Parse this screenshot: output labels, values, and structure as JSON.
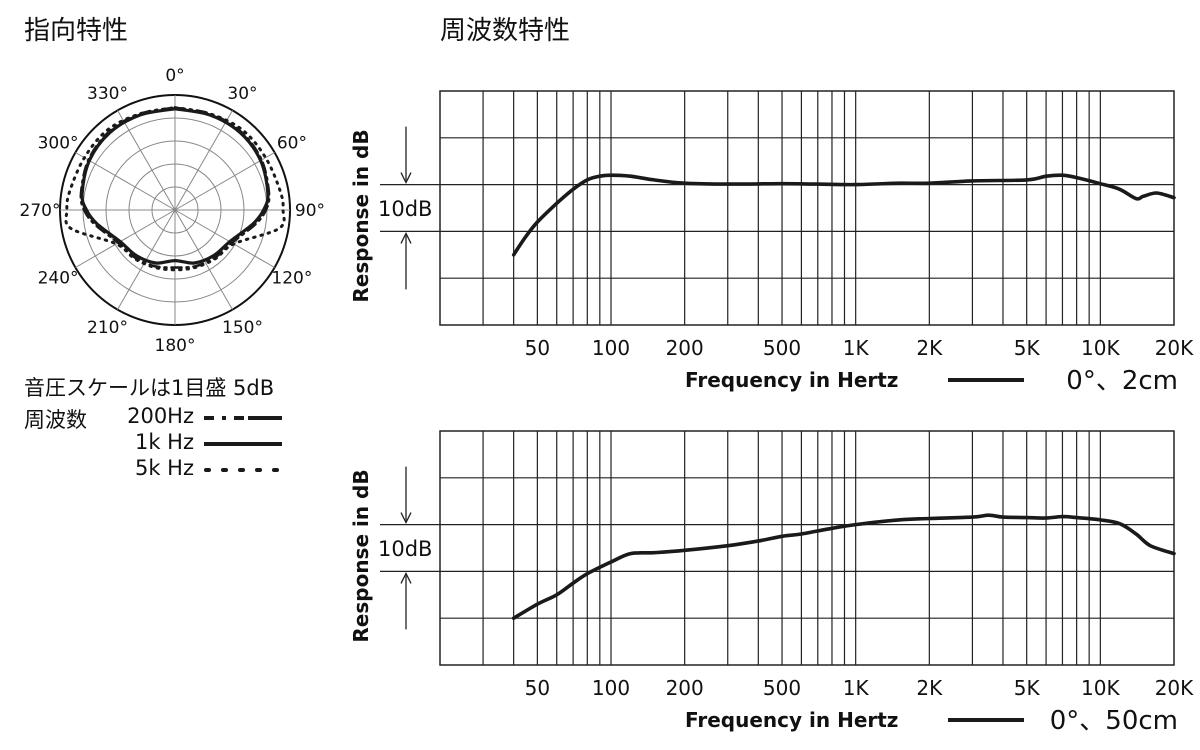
{
  "directivity": {
    "title": "指向特性",
    "scale_note": "音圧スケールは1目盛 5dB",
    "legend_heading": "周波数",
    "angle_labels": [
      "0°",
      "30°",
      "60°",
      "90°",
      "120°",
      "150°",
      "180°",
      "210°",
      "240°",
      "270°",
      "300°",
      "330°"
    ],
    "legend": [
      {
        "label": "200Hz",
        "style": "dash-dot"
      },
      {
        "label": "1k Hz",
        "style": "solid"
      },
      {
        "label": "5k Hz",
        "style": "dotted"
      }
    ]
  },
  "frequency_response": {
    "title": "周波数特性"
  },
  "colors": {
    "line": "#1a1a1a",
    "grid": "#222222",
    "background": "#ffffff"
  },
  "chart_data": [
    {
      "type": "line",
      "polar": true,
      "title": "指向特性",
      "scale_note": "音圧スケールは1目盛 5dB",
      "rings": 5,
      "angle_ticks_deg": [
        0,
        30,
        60,
        90,
        120,
        150,
        180,
        210,
        240,
        270,
        300,
        330
      ],
      "radius_unit": "normalized (1 = outer ring)",
      "series": [
        {
          "name": "200Hz",
          "style": "dash-dot",
          "angles": [
            0,
            20,
            40,
            60,
            80,
            90,
            100,
            120,
            140,
            160,
            180,
            200,
            220,
            240,
            260,
            270,
            280,
            300,
            320,
            340
          ],
          "r": [
            0.89,
            0.89,
            0.89,
            0.87,
            0.83,
            0.79,
            0.71,
            0.57,
            0.54,
            0.52,
            0.5,
            0.52,
            0.54,
            0.57,
            0.71,
            0.79,
            0.83,
            0.87,
            0.89,
            0.89
          ]
        },
        {
          "name": "1k Hz",
          "style": "solid",
          "angles": [
            0,
            20,
            40,
            60,
            80,
            90,
            100,
            120,
            140,
            160,
            180,
            200,
            220,
            240,
            260,
            270,
            280,
            300,
            320,
            340
          ],
          "r": [
            0.88,
            0.88,
            0.88,
            0.86,
            0.82,
            0.77,
            0.69,
            0.55,
            0.52,
            0.49,
            0.44,
            0.49,
            0.52,
            0.55,
            0.69,
            0.77,
            0.82,
            0.86,
            0.88,
            0.88
          ]
        },
        {
          "name": "5k Hz",
          "style": "dotted",
          "angles": [
            0,
            20,
            40,
            60,
            80,
            90,
            100,
            120,
            140,
            160,
            180,
            200,
            220,
            240,
            260,
            270,
            280,
            300,
            320,
            340
          ],
          "r": [
            0.89,
            0.89,
            0.91,
            0.91,
            0.93,
            0.94,
            0.92,
            0.59,
            0.55,
            0.53,
            0.52,
            0.53,
            0.55,
            0.59,
            0.92,
            0.94,
            0.93,
            0.91,
            0.91,
            0.89
          ]
        }
      ]
    },
    {
      "type": "line",
      "xscale": "log",
      "xlabel": "Frequency in Hertz",
      "ylabel": "Response in dB",
      "scale_label": "10dB",
      "xlim": [
        20,
        20000
      ],
      "ylim": [
        -30,
        20
      ],
      "xticks": [
        50,
        100,
        200,
        500,
        1000,
        2000,
        5000,
        10000,
        20000
      ],
      "xtick_labels": [
        "50",
        "100",
        "200",
        "500",
        "1K",
        "2K",
        "5K",
        "10K",
        "20K"
      ],
      "grid": true,
      "legend_label": "0°、2cm",
      "series": [
        {
          "name": "0°、2cm",
          "x": [
            40,
            45,
            50,
            60,
            70,
            80,
            90,
            100,
            120,
            150,
            200,
            300,
            500,
            700,
            1000,
            1500,
            2000,
            3000,
            5000,
            6000,
            7000,
            8000,
            10000,
            12000,
            14000,
            15000,
            17000,
            20000
          ],
          "y": [
            -15,
            -11,
            -8,
            -4,
            -1,
            1,
            1.8,
            2,
            1.8,
            1,
            0.3,
            0.1,
            0.2,
            0.1,
            0,
            0.3,
            0.3,
            0.8,
            1,
            1.8,
            2,
            1.5,
            0.2,
            -1,
            -3,
            -2.5,
            -1.8,
            -2.8
          ]
        }
      ]
    },
    {
      "type": "line",
      "xscale": "log",
      "xlabel": "Frequency in Hertz",
      "ylabel": "Response in dB",
      "scale_label": "10dB",
      "xlim": [
        20,
        20000
      ],
      "ylim": [
        -30,
        20
      ],
      "xticks": [
        50,
        100,
        200,
        500,
        1000,
        2000,
        5000,
        10000,
        20000
      ],
      "xtick_labels": [
        "50",
        "100",
        "200",
        "500",
        "1K",
        "2K",
        "5K",
        "10K",
        "20K"
      ],
      "grid": true,
      "legend_label": "0°、50cm",
      "series": [
        {
          "name": "0°、50cm",
          "x": [
            40,
            50,
            60,
            70,
            80,
            100,
            120,
            150,
            200,
            300,
            400,
            500,
            600,
            800,
            1000,
            1500,
            2000,
            3000,
            3500,
            4000,
            5000,
            6000,
            7000,
            8000,
            10000,
            12000,
            14000,
            16000,
            20000
          ],
          "y": [
            -20,
            -17,
            -15,
            -12.5,
            -10.5,
            -8,
            -6.2,
            -6,
            -5.5,
            -4.5,
            -3.5,
            -2.5,
            -2,
            -0.8,
            0,
            1,
            1.3,
            1.6,
            2,
            1.6,
            1.5,
            1.4,
            1.7,
            1.5,
            1,
            0.2,
            -2,
            -4.5,
            -6.2
          ]
        }
      ]
    }
  ]
}
